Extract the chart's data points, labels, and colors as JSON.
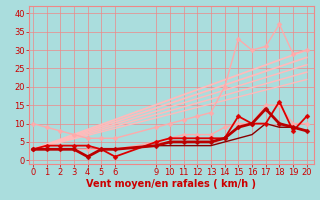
{
  "bg_color": "#aadddd",
  "grid_color": "#ee8888",
  "xlabel": "Vent moyen/en rafales ( km/h )",
  "xlabel_color": "#cc0000",
  "xlabel_fontsize": 7,
  "x_ticks": [
    0,
    1,
    2,
    3,
    4,
    5,
    6,
    9,
    10,
    11,
    12,
    13,
    14,
    15,
    16,
    17,
    18,
    19,
    20
  ],
  "ylim": [
    -1,
    42
  ],
  "xlim": [
    -0.3,
    20.5
  ],
  "yticks": [
    0,
    5,
    10,
    15,
    20,
    25,
    30,
    35,
    40
  ],
  "tick_fontsize": 6,
  "series": [
    {
      "x": [
        0,
        1,
        2,
        3,
        4,
        5,
        6,
        9,
        10,
        11,
        12,
        13,
        14,
        15,
        16,
        17,
        18,
        19,
        20
      ],
      "y": [
        10,
        9,
        8,
        7,
        6,
        6,
        6,
        9,
        10,
        11,
        12,
        13,
        20,
        33,
        30,
        31,
        37,
        29,
        30
      ],
      "color": "#ffaaaa",
      "linewidth": 1.0,
      "marker": "D",
      "markersize": 2.5
    },
    {
      "x": [
        0,
        1,
        2,
        3,
        4,
        5,
        6,
        9,
        10,
        11,
        12,
        13,
        14,
        15,
        16,
        17,
        18,
        19,
        20
      ],
      "y": [
        3,
        3,
        3,
        3,
        3,
        3,
        3,
        5,
        6,
        7,
        7,
        7,
        9,
        10,
        10,
        15,
        15,
        10,
        10
      ],
      "color": "#ffaaaa",
      "linewidth": 1.0,
      "marker": "D",
      "markersize": 2.5
    },
    {
      "x": [
        0,
        20
      ],
      "y": [
        3,
        30
      ],
      "color": "#ffbbbb",
      "linewidth": 1.3,
      "marker": null,
      "markersize": 0
    },
    {
      "x": [
        0,
        20
      ],
      "y": [
        3,
        28
      ],
      "color": "#ffbbbb",
      "linewidth": 1.3,
      "marker": null,
      "markersize": 0
    },
    {
      "x": [
        0,
        20
      ],
      "y": [
        3,
        26
      ],
      "color": "#ffbbbb",
      "linewidth": 1.1,
      "marker": null,
      "markersize": 0
    },
    {
      "x": [
        0,
        20
      ],
      "y": [
        3,
        24
      ],
      "color": "#ffbbbb",
      "linewidth": 1.1,
      "marker": null,
      "markersize": 0
    },
    {
      "x": [
        0,
        20
      ],
      "y": [
        3,
        22
      ],
      "color": "#ffbbbb",
      "linewidth": 1.0,
      "marker": null,
      "markersize": 0
    },
    {
      "x": [
        0,
        1,
        2,
        3,
        4,
        5,
        6,
        9,
        10,
        11,
        12,
        13,
        14,
        15,
        16,
        17,
        18,
        19,
        20
      ],
      "y": [
        3,
        4,
        4,
        4,
        4,
        3,
        1,
        5,
        6,
        6,
        6,
        6,
        6,
        12,
        10,
        10,
        16,
        8,
        12
      ],
      "color": "#dd0000",
      "linewidth": 1.3,
      "marker": "D",
      "markersize": 2.5
    },
    {
      "x": [
        0,
        1,
        2,
        3,
        4,
        5,
        6,
        9,
        10,
        11,
        12,
        13,
        14,
        15,
        16,
        17,
        18,
        19,
        20
      ],
      "y": [
        3,
        3,
        3,
        3,
        1,
        3,
        3,
        4,
        5,
        5,
        5,
        5,
        6,
        9,
        10,
        14,
        10,
        9,
        8
      ],
      "color": "#bb0000",
      "linewidth": 2.0,
      "marker": "D",
      "markersize": 2.5
    },
    {
      "x": [
        0,
        1,
        2,
        3,
        4,
        5,
        6,
        9,
        10,
        11,
        12,
        13,
        14,
        15,
        16,
        17,
        18,
        19,
        20
      ],
      "y": [
        3,
        3,
        3,
        3,
        3,
        3,
        3,
        4,
        4,
        4,
        4,
        4,
        5,
        6,
        7,
        10,
        9,
        9,
        8
      ],
      "color": "#880000",
      "linewidth": 1.0,
      "marker": null,
      "markersize": 0
    }
  ]
}
